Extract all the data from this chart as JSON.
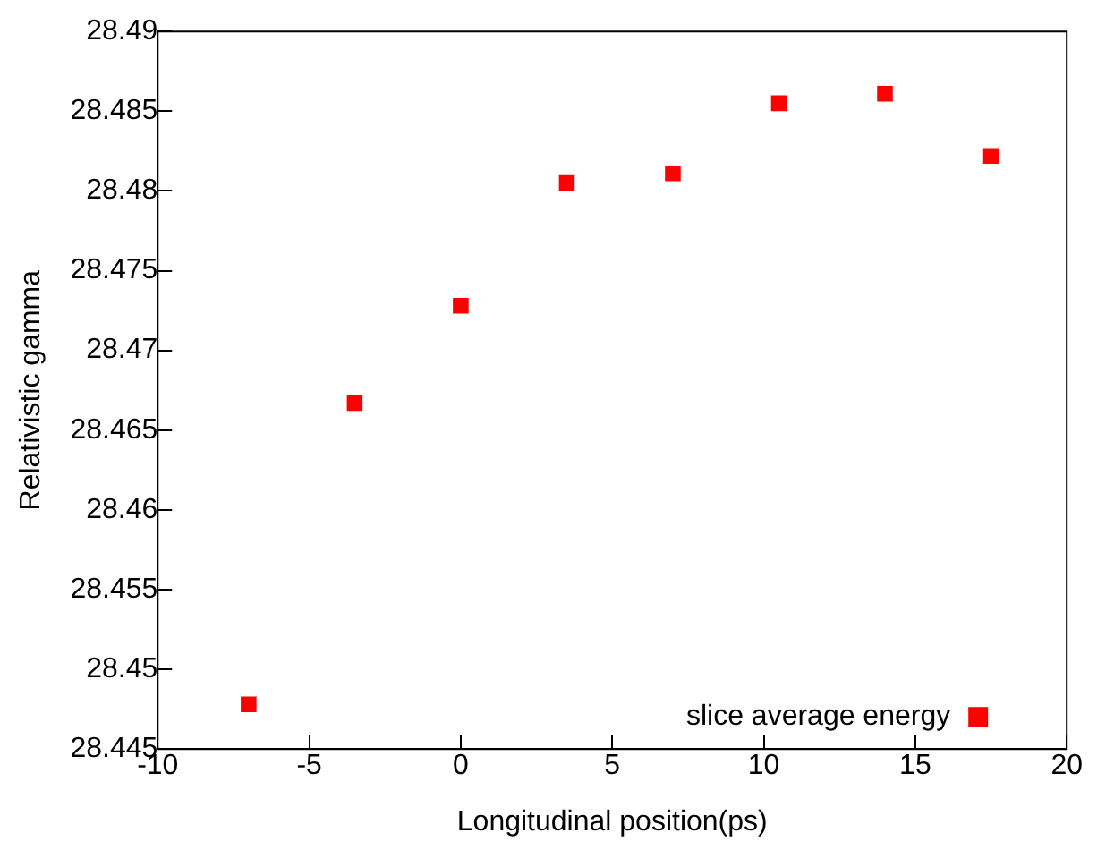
{
  "chart_data": {
    "type": "scatter",
    "xlabel": "Longitudinal position(ps)",
    "ylabel": "Relativistic gamma",
    "x": [
      -7,
      -3.5,
      0,
      3.5,
      7,
      10.5,
      14,
      17.5
    ],
    "series": [
      {
        "name": "slice average energy",
        "color": "#ff0000",
        "values": [
          28.4478,
          28.4667,
          28.4728,
          28.4805,
          28.4811,
          28.4855,
          28.4861,
          28.4822
        ]
      }
    ],
    "xlim": [
      -10,
      20
    ],
    "xticks": [
      -10,
      -5,
      0,
      5,
      10,
      15,
      20
    ],
    "ylim": [
      28.445,
      28.49
    ],
    "yticks": [
      28.445,
      28.45,
      28.455,
      28.46,
      28.465,
      28.47,
      28.475,
      28.48,
      28.485,
      28.49
    ],
    "grid": false,
    "legend": "bottom right",
    "marker": "square"
  }
}
